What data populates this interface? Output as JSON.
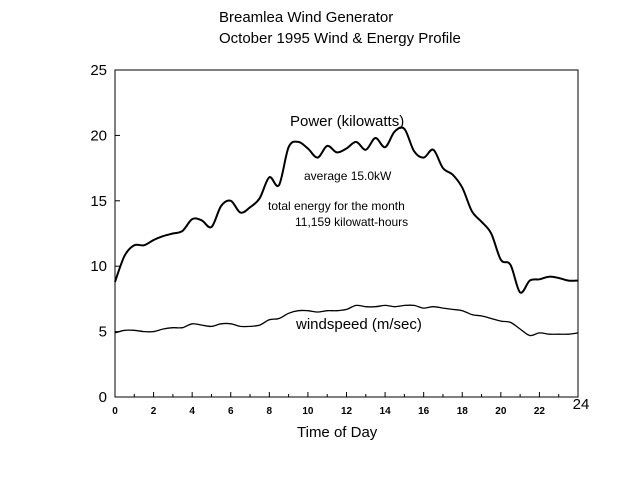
{
  "chart_data": {
    "type": "line",
    "title": "Breamlea Wind Generator",
    "subtitle": "October 1995 Wind & Energy Profile",
    "xlabel": "Time of Day",
    "ylabel": "",
    "xlim": [
      0,
      24
    ],
    "ylim": [
      0,
      25
    ],
    "x_ticks": [
      "0",
      "2",
      "4",
      "6",
      "8",
      "10",
      "12",
      "14",
      "16",
      "18",
      "20",
      "22"
    ],
    "x_tick_end": "24",
    "y_ticks": [
      "0",
      "5",
      "10",
      "15",
      "20",
      "25"
    ],
    "grid": false,
    "series": [
      {
        "name": "Power (kilowatts)",
        "x": [
          0,
          0.5,
          1,
          1.5,
          2,
          2.5,
          3,
          3.5,
          4,
          4.5,
          5,
          5.5,
          6,
          6.5,
          7,
          7.5,
          8,
          8.5,
          9,
          9.5,
          10,
          10.5,
          11,
          11.5,
          12,
          12.5,
          13,
          13.5,
          14,
          14.5,
          15,
          15.5,
          16,
          16.5,
          17,
          17.5,
          18,
          18.5,
          19,
          19.5,
          20,
          20.5,
          21,
          21.5,
          22,
          22.5,
          23,
          23.5,
          24
        ],
        "y": [
          8.8,
          10.8,
          11.6,
          11.6,
          12.0,
          12.3,
          12.5,
          12.7,
          13.6,
          13.5,
          13.0,
          14.6,
          15.0,
          14.1,
          14.5,
          15.2,
          16.8,
          16.2,
          19.1,
          19.5,
          19.0,
          18.3,
          19.2,
          18.7,
          19.0,
          19.5,
          18.9,
          19.8,
          19.1,
          20.3,
          20.5,
          18.8,
          18.3,
          18.9,
          17.5,
          17.0,
          16.0,
          14.2,
          13.4,
          12.5,
          10.5,
          10.1,
          8.0,
          8.9,
          9.0,
          9.2,
          9.1,
          8.9,
          8.9
        ]
      },
      {
        "name": "windspeed (m/sec)",
        "x": [
          0,
          0.5,
          1,
          1.5,
          2,
          2.5,
          3,
          3.5,
          4,
          4.5,
          5,
          5.5,
          6,
          6.5,
          7,
          7.5,
          8,
          8.5,
          9,
          9.5,
          10,
          10.5,
          11,
          11.5,
          12,
          12.5,
          13,
          13.5,
          14,
          14.5,
          15,
          15.5,
          16,
          16.5,
          17,
          17.5,
          18,
          18.5,
          19,
          19.5,
          20,
          20.5,
          21,
          21.5,
          22,
          22.5,
          23,
          23.5,
          24
        ],
        "y": [
          4.9,
          5.1,
          5.1,
          5.0,
          5.0,
          5.2,
          5.3,
          5.3,
          5.6,
          5.5,
          5.4,
          5.6,
          5.6,
          5.4,
          5.4,
          5.5,
          5.9,
          6.0,
          6.4,
          6.6,
          6.6,
          6.5,
          6.6,
          6.6,
          6.7,
          7.0,
          6.9,
          6.9,
          7.0,
          6.9,
          7.0,
          7.0,
          6.8,
          6.9,
          6.8,
          6.7,
          6.6,
          6.3,
          6.2,
          6.0,
          5.8,
          5.7,
          5.2,
          4.7,
          4.9,
          4.8,
          4.8,
          4.8,
          4.9
        ]
      }
    ],
    "annotations": {
      "power_label": "Power (kilowatts)",
      "average": "average 15.0kW",
      "total_line1": "total energy for the month",
      "total_line2": "11,159 kilowatt-hours",
      "wind_label": "windspeed (m/sec)"
    }
  }
}
